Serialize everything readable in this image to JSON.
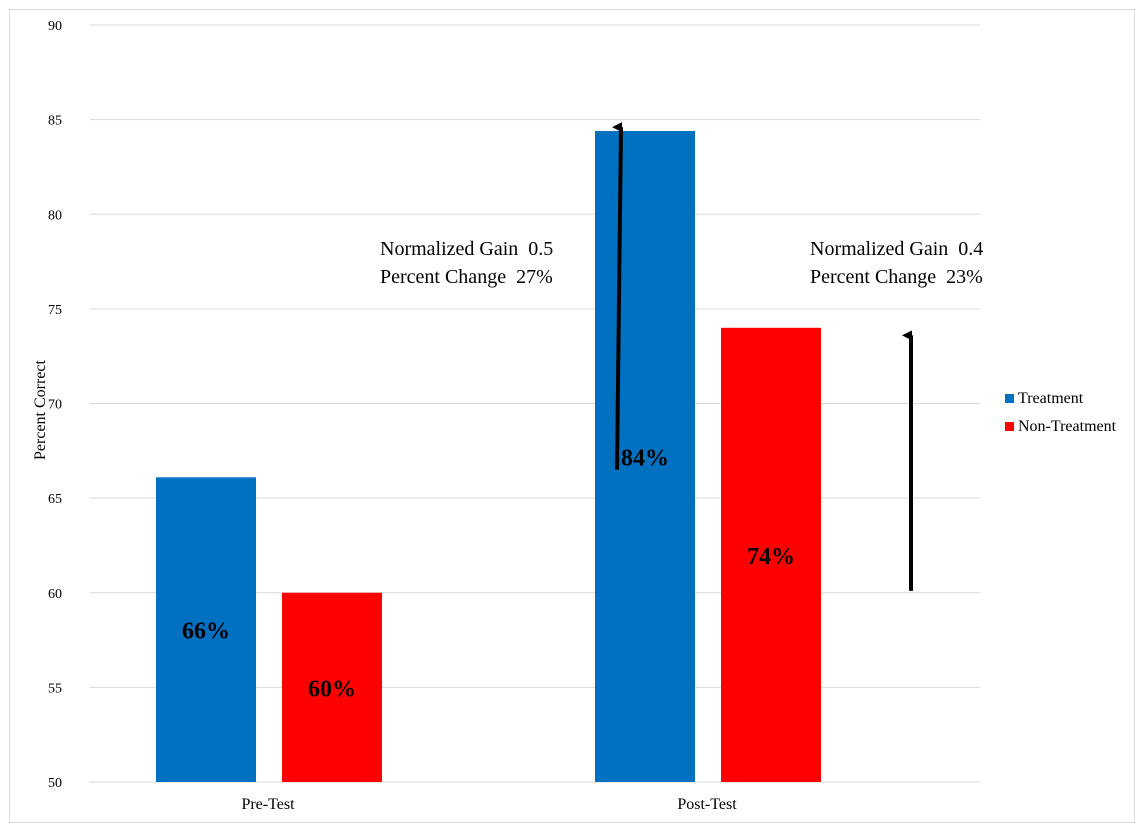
{
  "chart_data": {
    "type": "bar",
    "categories": [
      "Pre-Test",
      "Post-Test"
    ],
    "series": [
      {
        "name": "Treatment",
        "values": [
          66.1,
          84.4
        ],
        "labels": [
          "66%",
          "84%"
        ],
        "color": "#0070c0"
      },
      {
        "name": "Non-Treatment",
        "values": [
          60.0,
          74.0
        ],
        "labels": [
          "60%",
          "74%"
        ],
        "color": "#ff0000"
      }
    ],
    "title": "",
    "xlabel": "",
    "ylabel": "Percent Correct",
    "ylim": [
      50,
      90
    ],
    "yticks": [
      50,
      55,
      60,
      65,
      70,
      75,
      80,
      85,
      90
    ],
    "grid": true,
    "legend_position": "right",
    "annotations": [
      {
        "series": "Treatment",
        "lines": [
          "Normalized Gain  0.5",
          "Percent Change  27%"
        ],
        "arrow_from": 66.5,
        "arrow_to": 84.6
      },
      {
        "series": "Non-Treatment",
        "lines": [
          "Normalized Gain  0.4",
          "Percent Change  23%"
        ],
        "arrow_from": 60.1,
        "arrow_to": 73.6
      }
    ]
  }
}
